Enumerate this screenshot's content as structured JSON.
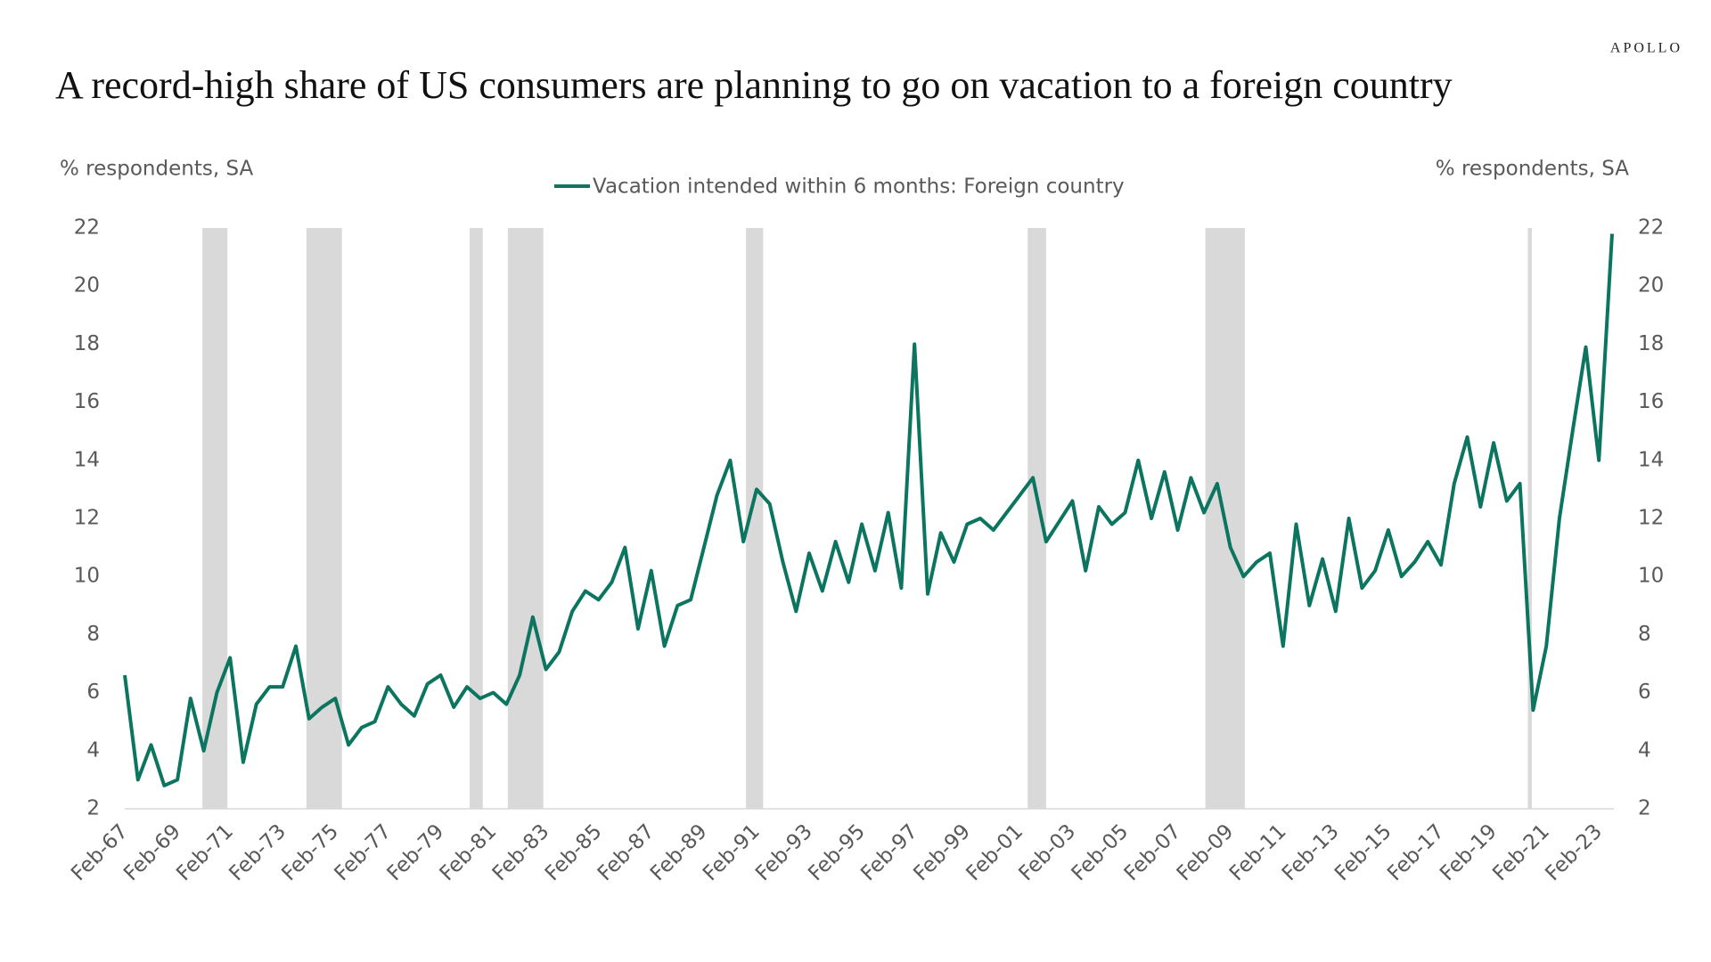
{
  "chart_data": {
    "type": "line",
    "brand": "APOLLO",
    "title": "A record-high share of US consumers are planning to go on vacation to a foreign country",
    "y_label": "% respondents, SA",
    "y2_label": "% respondents, SA",
    "categories": [
      "Feb-67",
      null,
      null,
      null,
      "Feb-69",
      null,
      null,
      null,
      "Feb-71",
      null,
      null,
      null,
      "Feb-73",
      null,
      null,
      null,
      "Feb-75",
      null,
      null,
      null,
      "Feb-77",
      null,
      null,
      null,
      "Feb-79",
      null,
      null,
      null,
      "Feb-81",
      null,
      null,
      null,
      "Feb-83",
      null,
      null,
      null,
      "Feb-85",
      null,
      null,
      null,
      "Feb-87",
      null,
      null,
      null,
      "Feb-89",
      null,
      null,
      null,
      "Feb-91",
      null,
      null,
      null,
      "Feb-93",
      null,
      null,
      null,
      "Feb-95",
      null,
      null,
      null,
      "Feb-97",
      null,
      null,
      null,
      "Feb-99",
      null,
      null,
      null,
      "Feb-01",
      null,
      null,
      null,
      "Feb-03",
      null,
      null,
      null,
      "Feb-05",
      null,
      null,
      null,
      "Feb-07",
      null,
      null,
      null,
      "Feb-09",
      null,
      null,
      null,
      "Feb-11",
      null,
      null,
      null,
      "Feb-13",
      null,
      null,
      null,
      "Feb-15",
      null,
      null,
      null,
      "Feb-17",
      null,
      null,
      null,
      "Feb-19",
      null,
      null,
      null,
      "Feb-21",
      null,
      null,
      null,
      "Feb-23",
      null
    ],
    "series": [
      {
        "name": "Vacation intended within 6 months: Foreign country",
        "color": "#0b7560",
        "values": [
          6.6,
          3.0,
          4.2,
          2.8,
          3.0,
          5.8,
          4.0,
          6.0,
          7.2,
          3.6,
          5.6,
          6.2,
          6.2,
          7.6,
          5.1,
          5.5,
          5.8,
          4.2,
          4.8,
          5.0,
          6.2,
          5.6,
          5.2,
          6.3,
          6.6,
          5.5,
          6.2,
          5.8,
          6.0,
          5.6,
          6.6,
          8.6,
          6.8,
          7.4,
          8.8,
          9.5,
          9.2,
          9.8,
          11.0,
          8.2,
          10.2,
          7.6,
          9.0,
          9.2,
          11.0,
          12.8,
          14.0,
          11.2,
          13.0,
          12.5,
          10.5,
          8.8,
          10.8,
          9.5,
          11.2,
          9.8,
          11.8,
          10.2,
          12.2,
          9.6,
          18.0,
          9.4,
          11.5,
          10.5,
          11.8,
          12.0,
          11.6,
          12.2,
          12.8,
          13.4,
          11.2,
          11.9,
          12.6,
          10.2,
          12.4,
          11.8,
          12.2,
          14.0,
          12.0,
          13.6,
          11.6,
          13.4,
          12.2,
          13.2,
          11.0,
          10.0,
          10.5,
          10.8,
          7.6,
          11.8,
          9.0,
          10.6,
          8.8,
          12.0,
          9.6,
          10.2,
          11.6,
          10.0,
          10.5,
          11.2,
          10.4,
          13.2,
          14.8,
          12.4,
          14.6,
          12.6,
          13.2,
          5.4,
          7.6,
          12.0,
          15.0,
          17.9,
          14.0,
          21.8
        ]
      }
    ],
    "shaded_periods": [
      [
        5.9,
        7.8
      ],
      [
        13.8,
        16.5
      ],
      [
        26.2,
        27.2
      ],
      [
        29.1,
        31.8
      ],
      [
        47.2,
        48.5
      ],
      [
        68.6,
        70.0
      ],
      [
        82.1,
        85.1
      ],
      [
        106.6,
        106.9
      ]
    ],
    "shade_color": "#d9d9d9",
    "ylim": [
      2,
      22
    ],
    "yticks": [
      2,
      4,
      6,
      8,
      10,
      12,
      14,
      16,
      18,
      20,
      22
    ],
    "y2lim": [
      2,
      22
    ],
    "y2ticks": [
      2,
      4,
      6,
      8,
      10,
      12,
      14,
      16,
      18,
      20,
      22
    ]
  }
}
